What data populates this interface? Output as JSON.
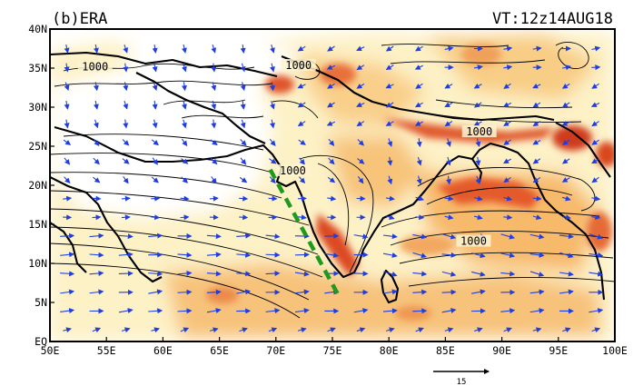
{
  "panel": {
    "label": "(b)ERA",
    "valid_time": "VT:12z14AUG18"
  },
  "axes": {
    "lon_labels": [
      "50E",
      "55E",
      "60E",
      "65E",
      "70E",
      "75E",
      "80E",
      "85E",
      "90E",
      "95E",
      "100E"
    ],
    "lat_labels": [
      "40N",
      "35N",
      "30N",
      "25N",
      "20N",
      "15N",
      "10N",
      "5N",
      "EQ"
    ],
    "lon_range": [
      50,
      100
    ],
    "lat_range": [
      0,
      40
    ]
  },
  "contours": {
    "labels": [
      {
        "text": "1000",
        "lon": 54,
        "lat": 34.8
      },
      {
        "text": "1000",
        "lon": 72,
        "lat": 35.0
      },
      {
        "text": "1000",
        "lon": 71.5,
        "lat": 21.5
      },
      {
        "text": "1000",
        "lon": 87.5,
        "lat": 12.5
      },
      {
        "text": "1000",
        "lon": 88.0,
        "lat": 26.5
      }
    ]
  },
  "reference_vector": {
    "label": "15"
  },
  "overlay": {
    "dashed_line_color": "#1e9a1e",
    "dashed_line_from": [
      69.5,
      22.0
    ],
    "dashed_line_to": [
      75.5,
      6.0
    ]
  },
  "colors": {
    "vectors": "#1f3ee0",
    "coast": "#000000",
    "shade_light": "#fce9b3",
    "shade_mid": "#f6b15c",
    "shade_dark": "#d9401f"
  }
}
